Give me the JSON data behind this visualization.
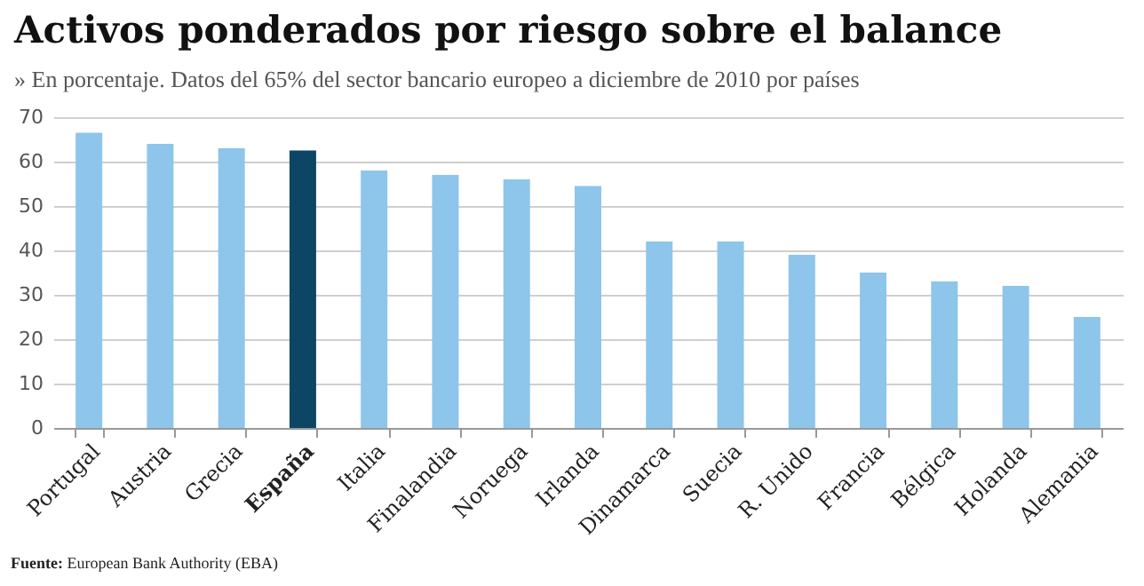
{
  "chart_data": {
    "type": "bar",
    "title": "Activos ponderados por riesgo sobre el balance",
    "subtitle": "» En porcentaje. Datos del 65% del sector bancario europeo a diciembre de 2010 por países",
    "categories": [
      "Portugal",
      "Austria",
      "Grecia",
      "España",
      "Italia",
      "Finalandia",
      "Noruega",
      "Irlanda",
      "Dinamarca",
      "Suecia",
      "R. Unido",
      "Francia",
      "Bélgica",
      "Holanda",
      "Alemania"
    ],
    "values": [
      66.5,
      64,
      63,
      62.5,
      58,
      57,
      56,
      54.5,
      42,
      42,
      39,
      35,
      33,
      32,
      25
    ],
    "colors": [
      "#8ec5ea",
      "#8ec5ea",
      "#8ec5ea",
      "#0d4665",
      "#8ec5ea",
      "#8ec5ea",
      "#8ec5ea",
      "#8ec5ea",
      "#8ec5ea",
      "#8ec5ea",
      "#8ec5ea",
      "#8ec5ea",
      "#8ec5ea",
      "#8ec5ea",
      "#8ec5ea"
    ],
    "ylim": [
      0,
      70
    ],
    "yticks": [
      0,
      10,
      20,
      30,
      40,
      50,
      60,
      70
    ],
    "grid": "y",
    "annotations": [
      "Fuente: European Bank Authority (EBA)"
    ]
  }
}
